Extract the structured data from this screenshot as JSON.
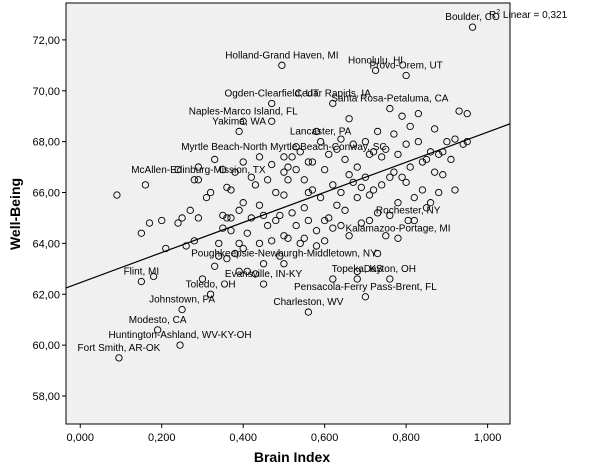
{
  "chart_data": {
    "type": "scatter",
    "xlabel": "Brain Index",
    "ylabel": "Well-Being",
    "xlim": [
      -0.035,
      1.055
    ],
    "ylim": [
      56.9,
      73.45
    ],
    "x_ticks": [
      0.0,
      0.2,
      0.4,
      0.6,
      0.8,
      1.0
    ],
    "x_tick_labels": [
      "0,000",
      "0,200",
      "0,400",
      "0,600",
      "0,800",
      "1,000"
    ],
    "y_ticks": [
      58,
      60,
      62,
      64,
      66,
      68,
      70,
      72
    ],
    "y_tick_labels": [
      "58,00",
      "60,00",
      "62,00",
      "64,00",
      "66,00",
      "68,00",
      "70,00",
      "72,00"
    ],
    "fit_line": {
      "label_text": "R",
      "label_sup": "2",
      "label_rest": " Linear = 0,321",
      "x": [
        -0.035,
        1.055
      ],
      "y": [
        62.25,
        68.7
      ]
    },
    "labeled_points": [
      {
        "name": "Boulder, CO",
        "x": 0.963,
        "y": 72.5
      },
      {
        "name": "Holland-Grand Haven, MI",
        "x": 0.495,
        "y": 71.0
      },
      {
        "name": "Honolulu, HI",
        "x": 0.725,
        "y": 70.8
      },
      {
        "name": "Provo-Orem, UT",
        "x": 0.8,
        "y": 70.6
      },
      {
        "name": "Ogden-Clearfield, UT",
        "x": 0.47,
        "y": 69.5
      },
      {
        "name": "Cedar Rapids, IA",
        "x": 0.62,
        "y": 69.5
      },
      {
        "name": "Santa Rosa-Petaluma, CA",
        "x": 0.76,
        "y": 69.3
      },
      {
        "name": "Naples-Marco Island, FL",
        "x": 0.4,
        "y": 68.8
      },
      {
        "name": "Yakima, WA",
        "x": 0.39,
        "y": 68.4
      },
      {
        "name": "Lancaster, PA",
        "x": 0.59,
        "y": 68.0
      },
      {
        "name": "Myrtle Beach-North Myrtle Beach-Conway, SC",
        "x": 0.5,
        "y": 67.4
      },
      {
        "name": "McAllen-Edinburg-Mission, TX",
        "x": 0.29,
        "y": 66.5
      },
      {
        "name": "Rochester, NY",
        "x": 0.805,
        "y": 64.9
      },
      {
        "name": "Kalamazoo-Portage, MI",
        "x": 0.78,
        "y": 64.2
      },
      {
        "name": "Poughkeepsie-Newburgh-Middletown, NY",
        "x": 0.5,
        "y": 63.2
      },
      {
        "name": "Flint, MI",
        "x": 0.15,
        "y": 62.5
      },
      {
        "name": "Evansville, IN-KY",
        "x": 0.45,
        "y": 62.4
      },
      {
        "name": "Topeka, KS",
        "x": 0.68,
        "y": 62.6
      },
      {
        "name": "Dayton, OH",
        "x": 0.76,
        "y": 62.6
      },
      {
        "name": "Pensacola-Ferry Pass-Brent, FL",
        "x": 0.7,
        "y": 61.9
      },
      {
        "name": "Toledo, OH",
        "x": 0.32,
        "y": 62.0
      },
      {
        "name": "Johnstown, PA",
        "x": 0.25,
        "y": 61.4
      },
      {
        "name": "Charleston, WV",
        "x": 0.56,
        "y": 61.3
      },
      {
        "name": "Modesto, CA",
        "x": 0.19,
        "y": 60.6
      },
      {
        "name": "Huntington-Ashland, WV-KY-OH",
        "x": 0.245,
        "y": 60.0
      },
      {
        "name": "Fort Smith, AR-OK",
        "x": 0.095,
        "y": 59.5
      }
    ],
    "points": [
      [
        0.09,
        65.9
      ],
      [
        0.15,
        64.4
      ],
      [
        0.16,
        66.3
      ],
      [
        0.17,
        64.8
      ],
      [
        0.2,
        64.9
      ],
      [
        0.24,
        64.8
      ],
      [
        0.25,
        65.0
      ],
      [
        0.26,
        63.9
      ],
      [
        0.28,
        64.1
      ],
      [
        0.28,
        66.5
      ],
      [
        0.29,
        67.0
      ],
      [
        0.29,
        65.0
      ],
      [
        0.3,
        62.6
      ],
      [
        0.31,
        65.8
      ],
      [
        0.32,
        66.0
      ],
      [
        0.33,
        63.1
      ],
      [
        0.34,
        64.0
      ],
      [
        0.34,
        63.5
      ],
      [
        0.35,
        64.6
      ],
      [
        0.35,
        65.1
      ],
      [
        0.36,
        66.2
      ],
      [
        0.36,
        65.0
      ],
      [
        0.36,
        63.4
      ],
      [
        0.37,
        65.0
      ],
      [
        0.37,
        66.1
      ],
      [
        0.37,
        64.5
      ],
      [
        0.38,
        66.8
      ],
      [
        0.38,
        63.6
      ],
      [
        0.39,
        65.3
      ],
      [
        0.39,
        64.0
      ],
      [
        0.39,
        62.9
      ],
      [
        0.4,
        65.6
      ],
      [
        0.4,
        63.8
      ],
      [
        0.41,
        64.4
      ],
      [
        0.41,
        62.9
      ],
      [
        0.42,
        65.0
      ],
      [
        0.42,
        66.6
      ],
      [
        0.43,
        62.8
      ],
      [
        0.43,
        66.3
      ],
      [
        0.44,
        64.0
      ],
      [
        0.44,
        65.5
      ],
      [
        0.45,
        65.1
      ],
      [
        0.45,
        63.2
      ],
      [
        0.46,
        64.7
      ],
      [
        0.46,
        66.5
      ],
      [
        0.47,
        64.1
      ],
      [
        0.47,
        68.8
      ],
      [
        0.48,
        64.9
      ],
      [
        0.48,
        66.0
      ],
      [
        0.49,
        65.1
      ],
      [
        0.49,
        63.5
      ],
      [
        0.5,
        64.3
      ],
      [
        0.5,
        66.8
      ],
      [
        0.5,
        65.9
      ],
      [
        0.51,
        67.0
      ],
      [
        0.51,
        64.2
      ],
      [
        0.51,
        66.5
      ],
      [
        0.52,
        67.4
      ],
      [
        0.52,
        65.2
      ],
      [
        0.53,
        64.7
      ],
      [
        0.53,
        66.9
      ],
      [
        0.54,
        64.0
      ],
      [
        0.54,
        67.6
      ],
      [
        0.55,
        64.2
      ],
      [
        0.55,
        66.5
      ],
      [
        0.55,
        65.4
      ],
      [
        0.56,
        67.2
      ],
      [
        0.56,
        64.9
      ],
      [
        0.57,
        67.2
      ],
      [
        0.57,
        66.1
      ],
      [
        0.58,
        64.5
      ],
      [
        0.58,
        68.4
      ],
      [
        0.59,
        65.8
      ],
      [
        0.6,
        66.9
      ],
      [
        0.6,
        64.1
      ],
      [
        0.61,
        67.5
      ],
      [
        0.61,
        65.0
      ],
      [
        0.62,
        66.3
      ],
      [
        0.62,
        64.6
      ],
      [
        0.63,
        67.7
      ],
      [
        0.63,
        65.5
      ],
      [
        0.64,
        68.1
      ],
      [
        0.64,
        66.0
      ],
      [
        0.64,
        64.7
      ],
      [
        0.65,
        67.3
      ],
      [
        0.65,
        65.3
      ],
      [
        0.66,
        66.7
      ],
      [
        0.66,
        64.3
      ],
      [
        0.67,
        67.9
      ],
      [
        0.67,
        66.4
      ],
      [
        0.68,
        65.8
      ],
      [
        0.68,
        67.0
      ],
      [
        0.69,
        66.2
      ],
      [
        0.69,
        64.8
      ],
      [
        0.7,
        68.0
      ],
      [
        0.7,
        66.6
      ],
      [
        0.71,
        67.5
      ],
      [
        0.71,
        65.9
      ],
      [
        0.71,
        64.9
      ],
      [
        0.72,
        67.6
      ],
      [
        0.72,
        66.1
      ],
      [
        0.73,
        68.4
      ],
      [
        0.73,
        65.2
      ],
      [
        0.74,
        67.4
      ],
      [
        0.74,
        66.3
      ],
      [
        0.75,
        67.7
      ],
      [
        0.75,
        64.3
      ],
      [
        0.76,
        66.6
      ],
      [
        0.76,
        65.1
      ],
      [
        0.77,
        68.3
      ],
      [
        0.77,
        66.8
      ],
      [
        0.78,
        67.5
      ],
      [
        0.78,
        65.6
      ],
      [
        0.79,
        66.6
      ],
      [
        0.79,
        69.0
      ],
      [
        0.8,
        67.9
      ],
      [
        0.8,
        66.4
      ],
      [
        0.81,
        68.6
      ],
      [
        0.81,
        67.0
      ],
      [
        0.82,
        65.8
      ],
      [
        0.82,
        64.9
      ],
      [
        0.83,
        68.0
      ],
      [
        0.84,
        67.2
      ],
      [
        0.84,
        66.1
      ],
      [
        0.85,
        67.3
      ],
      [
        0.85,
        65.4
      ],
      [
        0.86,
        67.6
      ],
      [
        0.87,
        66.8
      ],
      [
        0.87,
        68.5
      ],
      [
        0.88,
        67.5
      ],
      [
        0.88,
        66.0
      ],
      [
        0.89,
        67.6
      ],
      [
        0.9,
        68.0
      ],
      [
        0.91,
        67.3
      ],
      [
        0.92,
        68.1
      ],
      [
        0.93,
        69.2
      ],
      [
        0.94,
        67.9
      ],
      [
        0.95,
        69.1
      ],
      [
        0.95,
        68.0
      ],
      [
        0.89,
        66.7
      ],
      [
        0.86,
        65.6
      ],
      [
        0.92,
        66.1
      ],
      [
        0.66,
        68.9
      ],
      [
        0.53,
        67.8
      ],
      [
        0.44,
        67.4
      ],
      [
        0.33,
        67.3
      ],
      [
        0.27,
        65.3
      ],
      [
        0.21,
        63.8
      ],
      [
        0.18,
        62.7
      ],
      [
        0.58,
        63.9
      ],
      [
        0.62,
        62.6
      ],
      [
        0.68,
        62.9
      ],
      [
        0.73,
        63.6
      ],
      [
        0.6,
        64.9
      ],
      [
        0.56,
        66.0
      ],
      [
        0.4,
        67.2
      ],
      [
        0.47,
        67.1
      ],
      [
        0.35,
        66.9
      ],
      [
        0.24,
        66.9
      ],
      [
        0.83,
        69.1
      ]
    ]
  }
}
